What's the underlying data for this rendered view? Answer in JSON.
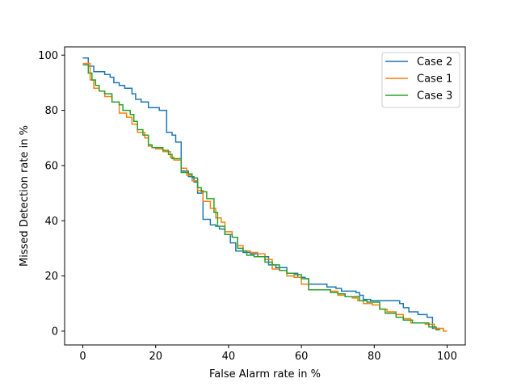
{
  "chart_data": {
    "type": "line",
    "step": true,
    "title": "",
    "xlabel": "False Alarm rate in %",
    "ylabel": "Missed Detection rate in %",
    "xlim": [
      -5,
      105
    ],
    "ylim": [
      -5,
      103
    ],
    "xticks": [
      0,
      20,
      40,
      60,
      80,
      100
    ],
    "yticks": [
      0,
      20,
      40,
      60,
      80,
      100
    ],
    "grid": false,
    "legend_position": "top-right",
    "series": [
      {
        "name": "Case 2",
        "color": "#1f77b4",
        "points": [
          [
            0,
            99
          ],
          [
            1.5,
            99
          ],
          [
            1.5,
            96
          ],
          [
            3,
            96
          ],
          [
            3,
            94
          ],
          [
            6,
            94
          ],
          [
            6,
            93
          ],
          [
            7.5,
            93
          ],
          [
            7.5,
            92
          ],
          [
            8.5,
            92
          ],
          [
            8.5,
            90
          ],
          [
            10,
            90
          ],
          [
            10,
            89
          ],
          [
            11.5,
            89
          ],
          [
            11.5,
            88
          ],
          [
            13.5,
            88
          ],
          [
            13.5,
            86
          ],
          [
            14.5,
            86
          ],
          [
            14.5,
            84
          ],
          [
            16,
            84
          ],
          [
            16,
            83
          ],
          [
            18,
            83
          ],
          [
            18,
            81
          ],
          [
            21,
            81
          ],
          [
            21,
            80
          ],
          [
            23,
            80
          ],
          [
            23,
            72
          ],
          [
            24.5,
            72
          ],
          [
            24.5,
            71
          ],
          [
            25.5,
            71
          ],
          [
            25.5,
            68.5
          ],
          [
            27,
            68.5
          ],
          [
            27,
            58
          ],
          [
            29,
            58
          ],
          [
            29,
            56
          ],
          [
            30.5,
            56
          ],
          [
            30.5,
            54
          ],
          [
            31.5,
            54
          ],
          [
            31.5,
            50
          ],
          [
            33,
            50
          ],
          [
            33,
            40.5
          ],
          [
            35,
            40.5
          ],
          [
            35,
            38.5
          ],
          [
            36.5,
            38.5
          ],
          [
            36.5,
            38
          ],
          [
            37.5,
            38
          ],
          [
            37.5,
            37
          ],
          [
            39,
            37
          ],
          [
            39,
            35
          ],
          [
            40.5,
            35
          ],
          [
            40.5,
            32
          ],
          [
            42,
            32
          ],
          [
            42,
            29
          ],
          [
            44,
            29
          ],
          [
            44,
            28.5
          ],
          [
            46,
            28.5
          ],
          [
            46,
            28
          ],
          [
            48,
            28
          ],
          [
            48,
            27
          ],
          [
            51,
            27
          ],
          [
            51,
            24
          ],
          [
            53,
            24
          ],
          [
            53,
            23
          ],
          [
            56,
            23
          ],
          [
            56,
            21
          ],
          [
            59,
            21
          ],
          [
            59,
            19.5
          ],
          [
            61,
            19.5
          ],
          [
            61,
            19
          ],
          [
            62,
            19
          ],
          [
            62,
            17
          ],
          [
            67,
            17
          ],
          [
            67,
            16
          ],
          [
            69.5,
            16
          ],
          [
            69.5,
            15.5
          ],
          [
            71,
            15.5
          ],
          [
            71,
            14.5
          ],
          [
            75,
            14.5
          ],
          [
            75,
            14
          ],
          [
            76,
            14
          ],
          [
            76,
            13
          ],
          [
            77,
            13
          ],
          [
            77,
            11.5
          ],
          [
            79,
            11.5
          ],
          [
            79,
            11
          ],
          [
            87,
            11
          ],
          [
            87,
            10
          ],
          [
            88,
            10
          ],
          [
            88,
            8.5
          ],
          [
            89.5,
            8.5
          ],
          [
            89.5,
            7
          ],
          [
            92,
            7
          ],
          [
            92,
            6
          ],
          [
            94.5,
            6
          ],
          [
            94.5,
            5
          ],
          [
            96,
            5
          ],
          [
            96,
            1
          ],
          [
            98,
            1
          ],
          [
            98,
            0.5
          ]
        ]
      },
      {
        "name": "Case 1",
        "color": "#ff7f0e",
        "points": [
          [
            0,
            97
          ],
          [
            2,
            97
          ],
          [
            2,
            91
          ],
          [
            3,
            91
          ],
          [
            3,
            88
          ],
          [
            4.5,
            88
          ],
          [
            4.5,
            87
          ],
          [
            6,
            87
          ],
          [
            6,
            85
          ],
          [
            8,
            85
          ],
          [
            8,
            83
          ],
          [
            10,
            83
          ],
          [
            10,
            79
          ],
          [
            12,
            79
          ],
          [
            12,
            77.5
          ],
          [
            13.5,
            77.5
          ],
          [
            13.5,
            75
          ],
          [
            15,
            75
          ],
          [
            15,
            72
          ],
          [
            17,
            72
          ],
          [
            17,
            70
          ],
          [
            18,
            70
          ],
          [
            18,
            67
          ],
          [
            19,
            67
          ],
          [
            19,
            66.5
          ],
          [
            20,
            66.5
          ],
          [
            20,
            66
          ],
          [
            22,
            66
          ],
          [
            22,
            65
          ],
          [
            24,
            65
          ],
          [
            24,
            63
          ],
          [
            25,
            63
          ],
          [
            25,
            62
          ],
          [
            27,
            62
          ],
          [
            27,
            59
          ],
          [
            28.5,
            59
          ],
          [
            28.5,
            56.5
          ],
          [
            30,
            56.5
          ],
          [
            30,
            54.5
          ],
          [
            31.5,
            54.5
          ],
          [
            31.5,
            51
          ],
          [
            33,
            51
          ],
          [
            33,
            47
          ],
          [
            35,
            47
          ],
          [
            35,
            44.5
          ],
          [
            36.5,
            44.5
          ],
          [
            36.5,
            41
          ],
          [
            38,
            41
          ],
          [
            38,
            39.5
          ],
          [
            39,
            39.5
          ],
          [
            39,
            36
          ],
          [
            41,
            36
          ],
          [
            41,
            34
          ],
          [
            42.5,
            34
          ],
          [
            42.5,
            31
          ],
          [
            44,
            31
          ],
          [
            44,
            29
          ],
          [
            46,
            29
          ],
          [
            46,
            28.5
          ],
          [
            48,
            28.5
          ],
          [
            48,
            28
          ],
          [
            50,
            28
          ],
          [
            50,
            26
          ],
          [
            52,
            26
          ],
          [
            52,
            22.5
          ],
          [
            54,
            22.5
          ],
          [
            54,
            22
          ],
          [
            56,
            22
          ],
          [
            56,
            20
          ],
          [
            58,
            20
          ],
          [
            58,
            19.5
          ],
          [
            60,
            19.5
          ],
          [
            60,
            17
          ],
          [
            62,
            17
          ],
          [
            62,
            15
          ],
          [
            68,
            15
          ],
          [
            68,
            14.5
          ],
          [
            70,
            14.5
          ],
          [
            70,
            13
          ],
          [
            72,
            13
          ],
          [
            72,
            12.5
          ],
          [
            74,
            12.5
          ],
          [
            74,
            12
          ],
          [
            75.5,
            12
          ],
          [
            75.5,
            11
          ],
          [
            77,
            11
          ],
          [
            77,
            10
          ],
          [
            79.5,
            10
          ],
          [
            79.5,
            9.5
          ],
          [
            81.5,
            9.5
          ],
          [
            81.5,
            8
          ],
          [
            83.5,
            8
          ],
          [
            83.5,
            7
          ],
          [
            86,
            7
          ],
          [
            86,
            6
          ],
          [
            88,
            6
          ],
          [
            88,
            4.5
          ],
          [
            90,
            4.5
          ],
          [
            90,
            3
          ],
          [
            94,
            3
          ],
          [
            94,
            2.5
          ],
          [
            96.5,
            2.5
          ],
          [
            96.5,
            1
          ],
          [
            99,
            1
          ],
          [
            99,
            0
          ],
          [
            100,
            0
          ]
        ]
      },
      {
        "name": "Case 3",
        "color": "#2ca02c",
        "points": [
          [
            0,
            96.5
          ],
          [
            1.5,
            96.5
          ],
          [
            1.5,
            93.5
          ],
          [
            2.5,
            93.5
          ],
          [
            2.5,
            91
          ],
          [
            3.5,
            91
          ],
          [
            3.5,
            89
          ],
          [
            4.5,
            89
          ],
          [
            4.5,
            87
          ],
          [
            6,
            87
          ],
          [
            6,
            86
          ],
          [
            8,
            86
          ],
          [
            8,
            83
          ],
          [
            10,
            83
          ],
          [
            10,
            82
          ],
          [
            11,
            82
          ],
          [
            11,
            80
          ],
          [
            13,
            80
          ],
          [
            13,
            78.5
          ],
          [
            14,
            78.5
          ],
          [
            14,
            76
          ],
          [
            15,
            76
          ],
          [
            15,
            73
          ],
          [
            16.5,
            73
          ],
          [
            16.5,
            71
          ],
          [
            18,
            71
          ],
          [
            18,
            67.5
          ],
          [
            19,
            67.5
          ],
          [
            19,
            66.5
          ],
          [
            22,
            66.5
          ],
          [
            22,
            65.5
          ],
          [
            23.5,
            65.5
          ],
          [
            23.5,
            64
          ],
          [
            24.5,
            64
          ],
          [
            24.5,
            62.5
          ],
          [
            27,
            62.5
          ],
          [
            27,
            57.5
          ],
          [
            29,
            57.5
          ],
          [
            29,
            57
          ],
          [
            30,
            57
          ],
          [
            30,
            55.5
          ],
          [
            31.5,
            55.5
          ],
          [
            31.5,
            52
          ],
          [
            32.5,
            52
          ],
          [
            32.5,
            50.5
          ],
          [
            34,
            50.5
          ],
          [
            34,
            48
          ],
          [
            36,
            48
          ],
          [
            36,
            43
          ],
          [
            37,
            43
          ],
          [
            37,
            38
          ],
          [
            39,
            38
          ],
          [
            39,
            35
          ],
          [
            41,
            35
          ],
          [
            41,
            34
          ],
          [
            42.5,
            34
          ],
          [
            42.5,
            30
          ],
          [
            44,
            30
          ],
          [
            44,
            29
          ],
          [
            45,
            29
          ],
          [
            45,
            27.5
          ],
          [
            47,
            27.5
          ],
          [
            47,
            27
          ],
          [
            50,
            27
          ],
          [
            50,
            25
          ],
          [
            52,
            25
          ],
          [
            52,
            24
          ],
          [
            54,
            24
          ],
          [
            54,
            22
          ],
          [
            56,
            22
          ],
          [
            56,
            21
          ],
          [
            58,
            21
          ],
          [
            58,
            20.5
          ],
          [
            60,
            20.5
          ],
          [
            60,
            19
          ],
          [
            62,
            19
          ],
          [
            62,
            15
          ],
          [
            68,
            15
          ],
          [
            68,
            14
          ],
          [
            70,
            14
          ],
          [
            70,
            13.5
          ],
          [
            72,
            13.5
          ],
          [
            72,
            12.5
          ],
          [
            76,
            12.5
          ],
          [
            76,
            11
          ],
          [
            78,
            11
          ],
          [
            78,
            10.5
          ],
          [
            81.5,
            10.5
          ],
          [
            81.5,
            8
          ],
          [
            83,
            8
          ],
          [
            83,
            6.5
          ],
          [
            86,
            6.5
          ],
          [
            86,
            5
          ],
          [
            88,
            5
          ],
          [
            88,
            4
          ],
          [
            90.5,
            4
          ],
          [
            90.5,
            3
          ],
          [
            95,
            3
          ],
          [
            95,
            1.5
          ],
          [
            97,
            1.5
          ],
          [
            97,
            0.5
          ],
          [
            98,
            0.5
          ]
        ]
      }
    ]
  }
}
